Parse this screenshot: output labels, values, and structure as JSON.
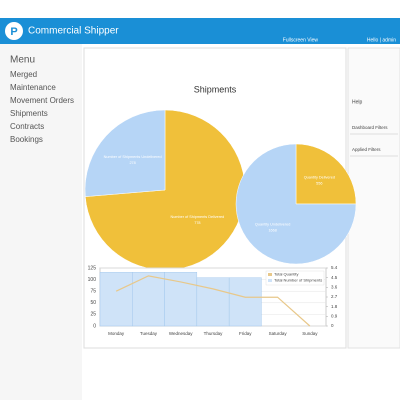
{
  "header": {
    "logo": "P",
    "brand": "Commercial Shipper",
    "fullscreen": "Fullscreen View",
    "user": "Hello | admin"
  },
  "menu": {
    "title": "Menu",
    "items": [
      "Merged",
      "Maintenance",
      "Movement Orders",
      "Shipments",
      "Contracts",
      "Bookings"
    ]
  },
  "side_panel": {
    "title": "Help",
    "items": [
      "Dashboard Filters",
      "Applied Filters"
    ]
  },
  "dashboard": {
    "title": "Shipments"
  },
  "chart_data": [
    {
      "type": "pie",
      "categories": [
        "Number of Shipments Delivered",
        "Number of Shipments Undelivered"
      ],
      "values": [
        778,
        278
      ],
      "colors": [
        "#f0c03a",
        "#b6d5f6"
      ]
    },
    {
      "type": "pie",
      "categories": [
        "Quantity Delivered",
        "Quantity Undelivered"
      ],
      "values": [
        556,
        1668
      ],
      "colors": [
        "#f0c03a",
        "#b6d5f6"
      ]
    },
    {
      "type": "combo",
      "categories": [
        "Monday",
        "Tuesday",
        "Wednesday",
        "Thursday",
        "Friday",
        "Saturday",
        "Sunday"
      ],
      "series": [
        {
          "name": "Total Quantity",
          "color": "#e8c88a",
          "type": "line",
          "values": [
            75,
            108,
            95,
            80,
            62,
            62,
            0
          ]
        },
        {
          "name": "Total Number of Shipments",
          "color": "#cfe3f8",
          "type": "bar",
          "axis": "y2",
          "values": [
            5,
            5,
            5,
            4.5,
            4.5,
            0,
            0
          ]
        }
      ],
      "ylim": [
        0,
        125
      ],
      "yticks": [
        0,
        25,
        50,
        75,
        100,
        125
      ],
      "y2lim": [
        0,
        5.4
      ],
      "y2ticks": [
        0,
        0.9,
        1.8,
        2.7,
        3.6,
        4.5,
        5.4
      ],
      "grid": true,
      "legend": "top-right"
    }
  ]
}
